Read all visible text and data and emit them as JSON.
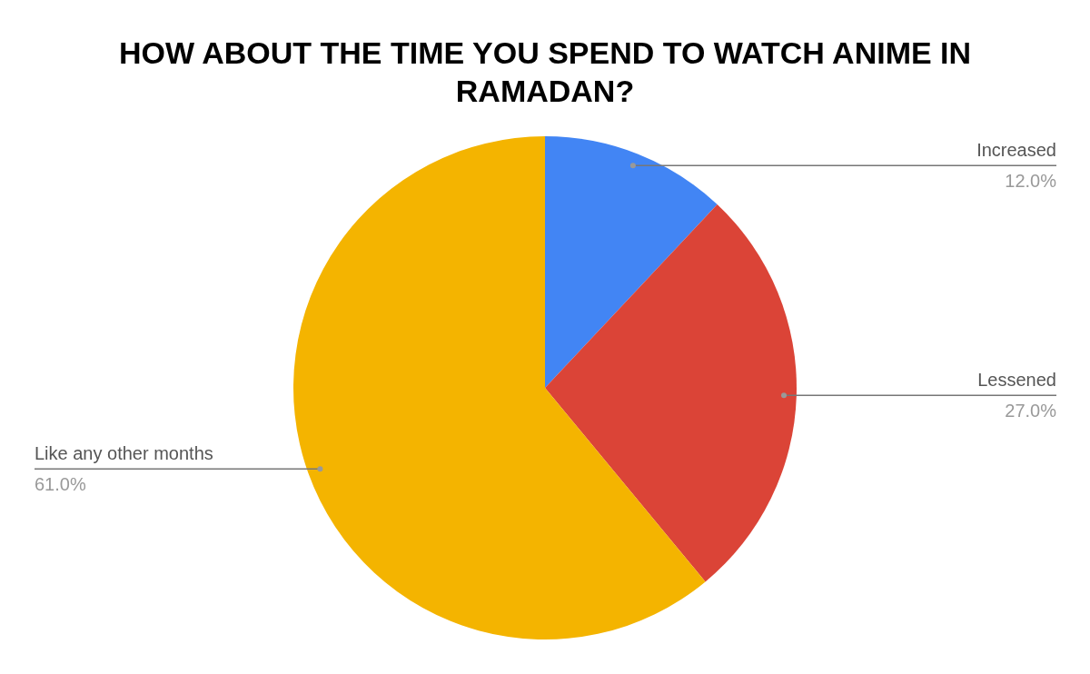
{
  "chart_data": {
    "type": "pie",
    "title": "HOW ABOUT THE TIME YOU SPEND TO WATCH ANIME IN RAMADAN?",
    "categories": [
      "Increased",
      "Lessened",
      "Like any other months"
    ],
    "values": [
      12,
      27,
      61
    ],
    "colors": [
      "#4285f4",
      "#db4437",
      "#f4b400"
    ],
    "value_labels": [
      "12.0%",
      "27.0%",
      "61.0%"
    ]
  }
}
